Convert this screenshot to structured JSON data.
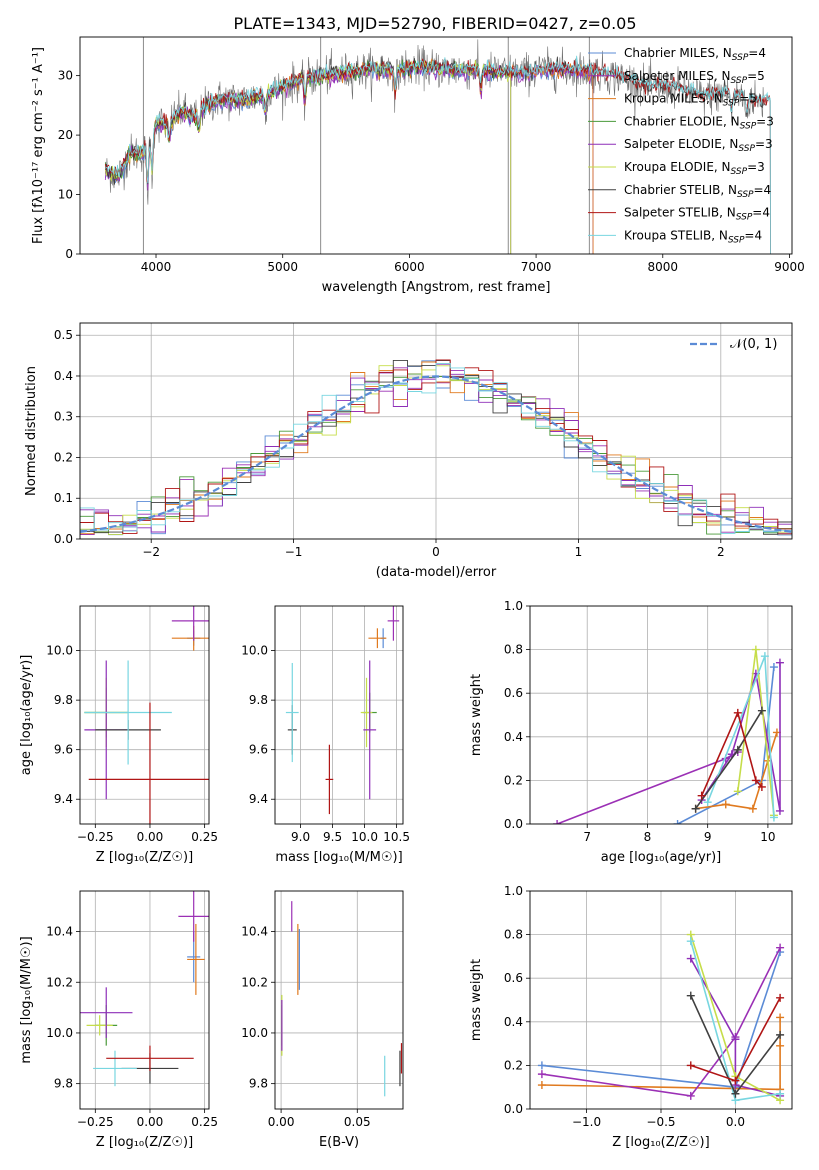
{
  "title": "PLATE=1343, MJD=52790, FIBERID=0427, z=0.05",
  "colors": {
    "chabrier_miles": "#5b8bd6",
    "salpeter_miles": "#9b30b5",
    "kroupa_miles": "#e07a1f",
    "chabrier_elodie": "#4a9a3a",
    "salpeter_elodie": "#8e2fb8",
    "kroupa_elodie": "#c6dd4a",
    "chabrier_stelib": "#404040",
    "salpeter_stelib": "#b01515",
    "kroupa_stelib": "#78d6e0",
    "gaussian": "#5b8bd6",
    "grid": "#b0b0b0"
  },
  "chart_data": [
    {
      "id": "spectrum",
      "type": "line",
      "xlabel": "wavelength [Angstrom, rest frame]",
      "ylabel": "Flux [fλ10⁻¹⁷ erg cm⁻² s⁻¹ A⁻¹]",
      "xlim": [
        3400,
        9020
      ],
      "ylim": [
        0,
        36.5
      ],
      "xticks": [
        "4000",
        "5000",
        "6000",
        "7000",
        "8000",
        "9000"
      ],
      "yticks": [
        "0",
        "10",
        "20",
        "30"
      ],
      "legend_position": "top-right",
      "legend": [
        {
          "key": "chabrier_miles",
          "label": "Chabrier MILES, N",
          "sub": "SSP",
          "tail": "=4"
        },
        {
          "key": "salpeter_miles",
          "label": "Salpeter MILES, N",
          "sub": "SSP",
          "tail": "=5"
        },
        {
          "key": "kroupa_miles",
          "label": "Kroupa MILES, N",
          "sub": "SSP",
          "tail": "=5"
        },
        {
          "key": "chabrier_elodie",
          "label": "Chabrier ELODIE, N",
          "sub": "SSP",
          "tail": "=3"
        },
        {
          "key": "salpeter_elodie",
          "label": "Salpeter ELODIE, N",
          "sub": "SSP",
          "tail": "=3"
        },
        {
          "key": "kroupa_elodie",
          "label": "Kroupa ELODIE, N",
          "sub": "SSP",
          "tail": "=3"
        },
        {
          "key": "chabrier_stelib",
          "label": "Chabrier STELIB, N",
          "sub": "SSP",
          "tail": "=4"
        },
        {
          "key": "salpeter_stelib",
          "label": "Salpeter STELIB, N",
          "sub": "SSP",
          "tail": "=4"
        },
        {
          "key": "kroupa_stelib",
          "label": "Kroupa STELIB, N",
          "sub": "SSP",
          "tail": "=4"
        }
      ],
      "continuum": {
        "x": [
          3600,
          3700,
          3800,
          3900,
          4000,
          4100,
          4200,
          4300,
          4400,
          4500,
          4700,
          4900,
          5100,
          5300,
          5500,
          5700,
          5900,
          6100,
          6300,
          6500,
          6700,
          6900,
          7100,
          7300,
          7500,
          7700,
          7900,
          8100,
          8300,
          8500,
          8700,
          8800
        ],
        "y": [
          14,
          13,
          17,
          17,
          22,
          22,
          24,
          23,
          25,
          26,
          26,
          27,
          29,
          30,
          30.5,
          31,
          31,
          31.5,
          31,
          31,
          30.5,
          30.5,
          31,
          31,
          30.5,
          29.5,
          28,
          28,
          26.5,
          27,
          26,
          25.5
        ]
      },
      "model_ends": {
        "miles": 7450,
        "elodie": 6800,
        "stelib": 8850
      },
      "cut_positions": [
        3900,
        5300,
        6780,
        7420
      ]
    },
    {
      "id": "residual_hist",
      "type": "line",
      "xlabel": "(data-model)/error",
      "ylabel": "Normed distribution",
      "xlim": [
        -2.5,
        2.5
      ],
      "ylim": [
        0,
        0.53
      ],
      "xticks": [
        "−2",
        "−1",
        "0",
        "1",
        "2"
      ],
      "yticks": [
        "0.0",
        "0.1",
        "0.2",
        "0.3",
        "0.4",
        "0.5"
      ],
      "legend_position": "top-right",
      "gaussian_label": "𝒩(0, 1)",
      "bin_width": 0.1
    },
    {
      "id": "age_vs_z",
      "type": "scatter",
      "xlabel": "Z [log₁₀(Z/Z☉)]",
      "ylabel": "age  [log₁₀(age/yr)]",
      "xlim": [
        -0.32,
        0.27
      ],
      "ylim": [
        9.3,
        10.18
      ],
      "xticks": [
        "−0.25",
        "0.00",
        "0.25"
      ],
      "yticks": [
        "9.4",
        "9.6",
        "9.8",
        "10.0"
      ],
      "points": [
        {
          "key": "chabrier_miles",
          "x": 0.2,
          "y": 10.05,
          "xerr": 0.03,
          "yerr": 0.03
        },
        {
          "key": "kroupa_miles",
          "x": 0.2,
          "y": 10.05,
          "xerr": 0.1,
          "yerr": 0.05
        },
        {
          "key": "salpeter_miles",
          "x": 0.2,
          "y": 10.12,
          "xerr": 0.1,
          "yerr": 0.08
        },
        {
          "key": "chabrier_elodie",
          "x": -0.2,
          "y": 9.75,
          "xerr": 0.1,
          "yerr": 0.1
        },
        {
          "key": "kroupa_elodie",
          "x": -0.2,
          "y": 9.75,
          "xerr": 0.1,
          "yerr": 0.14
        },
        {
          "key": "salpeter_elodie",
          "x": -0.2,
          "y": 9.68,
          "xerr": 0.1,
          "yerr": 0.28
        },
        {
          "key": "chabrier_stelib",
          "x": -0.1,
          "y": 9.68,
          "xerr": 0.15,
          "yerr": 0.04
        },
        {
          "key": "kroupa_stelib",
          "x": -0.1,
          "y": 9.75,
          "xerr": 0.2,
          "yerr": 0.21
        },
        {
          "key": "salpeter_stelib",
          "x": 0.0,
          "y": 9.48,
          "xerr": 0.28,
          "yerr": 0.31
        }
      ]
    },
    {
      "id": "age_vs_mass",
      "type": "scatter",
      "xlabel": "mass [log₁₀(M/M☉)]",
      "xlim": [
        8.6,
        10.6
      ],
      "ylim": [
        9.3,
        10.18
      ],
      "xticks": [
        "9.0",
        "9.5",
        "10.0",
        "10.5"
      ],
      "yticks": [
        "9.4",
        "9.6",
        "9.8",
        "10.0"
      ],
      "points": [
        {
          "key": "chabrier_miles",
          "x": 10.29,
          "y": 10.05,
          "xerr": 0.04,
          "yerr": 0.04
        },
        {
          "key": "kroupa_miles",
          "x": 10.2,
          "y": 10.05,
          "xerr": 0.14,
          "yerr": 0.04
        },
        {
          "key": "salpeter_miles",
          "x": 10.45,
          "y": 10.12,
          "xerr": 0.09,
          "yerr": 0.08
        },
        {
          "key": "chabrier_elodie",
          "x": 10.08,
          "y": 9.75,
          "xerr": 0.11,
          "yerr": 0.08
        },
        {
          "key": "kroupa_elodie",
          "x": 10.03,
          "y": 9.75,
          "xerr": 0.09,
          "yerr": 0.14
        },
        {
          "key": "salpeter_elodie",
          "x": 10.08,
          "y": 9.68,
          "xerr": 0.1,
          "yerr": 0.28
        },
        {
          "key": "chabrier_stelib",
          "x": 8.87,
          "y": 9.68,
          "xerr": 0.07,
          "yerr": 0.1
        },
        {
          "key": "kroupa_stelib",
          "x": 8.87,
          "y": 9.75,
          "xerr": 0.1,
          "yerr": 0.2
        },
        {
          "key": "salpeter_stelib",
          "x": 9.45,
          "y": 9.48,
          "xerr": 0.06,
          "yerr": 0.14
        }
      ]
    },
    {
      "id": "weight_vs_age",
      "type": "line",
      "xlabel": "age  [log₁₀(age/yr)]",
      "ylabel": "mass weight",
      "xlim": [
        6.05,
        10.4
      ],
      "ylim": [
        0,
        1
      ],
      "xticks": [
        "7",
        "8",
        "9",
        "10"
      ],
      "yticks": [
        "0.0",
        "0.2",
        "0.4",
        "0.6",
        "0.8",
        "1.0"
      ],
      "series": [
        {
          "key": "salpeter_miles",
          "x": [
            6.5,
            9.3,
            9.5
          ],
          "y": [
            0.0,
            0.3,
            0.33
          ]
        },
        {
          "key": "chabrier_miles",
          "x": [
            8.5,
            9.9,
            10.1
          ],
          "y": [
            0.0,
            0.2,
            0.72
          ]
        },
        {
          "key": "kroupa_miles",
          "x": [
            8.8,
            9.3,
            9.75,
            10.0,
            10.15
          ],
          "y": [
            0.07,
            0.09,
            0.07,
            0.29,
            0.42
          ]
        },
        {
          "key": "salpeter_elodie",
          "x": [
            8.9,
            9.4,
            9.8,
            10.2,
            10.2
          ],
          "y": [
            0.11,
            0.32,
            0.69,
            0.06,
            0.74
          ]
        },
        {
          "key": "kroupa_elodie",
          "x": [
            9.5,
            9.8,
            10.1
          ],
          "y": [
            0.15,
            0.8,
            0.04
          ]
        },
        {
          "key": "kroupa_stelib",
          "x": [
            9.0,
            9.95,
            10.1
          ],
          "y": [
            0.1,
            0.77,
            0.03
          ]
        },
        {
          "key": "chabrier_stelib",
          "x": [
            8.8,
            9.5,
            9.9
          ],
          "y": [
            0.07,
            0.34,
            0.52
          ]
        },
        {
          "key": "salpeter_stelib",
          "x": [
            8.9,
            9.5,
            9.8,
            9.9
          ],
          "y": [
            0.13,
            0.51,
            0.2,
            0.17
          ]
        }
      ]
    },
    {
      "id": "mass_vs_z",
      "type": "scatter",
      "xlabel": "Z [log₁₀(Z/Z☉)]",
      "ylabel": "mass [log₁₀(M/M☉)]",
      "xlim": [
        -0.32,
        0.27
      ],
      "ylim": [
        9.7,
        10.56
      ],
      "xticks": [
        "−0.25",
        "0.00",
        "0.25"
      ],
      "yticks": [
        "9.8",
        "10.0",
        "10.2",
        "10.4"
      ],
      "points": [
        {
          "key": "chabrier_miles",
          "x": 0.2,
          "y": 10.3,
          "xerr": 0.03,
          "yerr": 0.1
        },
        {
          "key": "kroupa_miles",
          "x": 0.21,
          "y": 10.29,
          "xerr": 0.04,
          "yerr": 0.14
        },
        {
          "key": "salpeter_miles",
          "x": 0.2,
          "y": 10.46,
          "xerr": 0.07,
          "yerr": 0.1
        },
        {
          "key": "chabrier_elodie",
          "x": -0.2,
          "y": 10.03,
          "xerr": 0.05,
          "yerr": 0.08
        },
        {
          "key": "kroupa_elodie",
          "x": -0.23,
          "y": 10.03,
          "xerr": 0.06,
          "yerr": 0.04
        },
        {
          "key": "salpeter_elodie",
          "x": -0.2,
          "y": 10.08,
          "xerr": 0.12,
          "yerr": 0.1
        },
        {
          "key": "chabrier_stelib",
          "x": 0.0,
          "y": 9.86,
          "xerr": 0.13,
          "yerr": 0.06
        },
        {
          "key": "kroupa_stelib",
          "x": -0.16,
          "y": 9.86,
          "xerr": 0.1,
          "yerr": 0.07
        },
        {
          "key": "salpeter_stelib",
          "x": 0.0,
          "y": 9.9,
          "xerr": 0.2,
          "yerr": 0.05
        }
      ]
    },
    {
      "id": "mass_vs_ebv",
      "type": "scatter",
      "xlabel": "E(B-V)",
      "xlim": [
        -0.004,
        0.08
      ],
      "ylim": [
        9.7,
        10.56
      ],
      "xticks": [
        "0.00",
        "0.05"
      ],
      "yticks": [
        "9.8",
        "10.0",
        "10.2",
        "10.4"
      ],
      "points": [
        {
          "key": "chabrier_miles",
          "x": 0.012,
          "y": 10.29,
          "xerr": 0.0,
          "yerr": 0.12
        },
        {
          "key": "kroupa_miles",
          "x": 0.011,
          "y": 10.29,
          "xerr": 0.0,
          "yerr": 0.14
        },
        {
          "key": "salpeter_miles",
          "x": 0.007,
          "y": 10.46,
          "xerr": 0.0,
          "yerr": 0.06
        },
        {
          "key": "chabrier_elodie",
          "x": 0.0005,
          "y": 10.03,
          "xerr": 0.0,
          "yerr": 0.08
        },
        {
          "key": "kroupa_elodie",
          "x": 0.0005,
          "y": 10.03,
          "xerr": 0.0,
          "yerr": 0.12
        },
        {
          "key": "salpeter_elodie",
          "x": 0.0005,
          "y": 10.03,
          "xerr": 0.0,
          "yerr": 0.1
        },
        {
          "key": "chabrier_stelib",
          "x": 0.078,
          "y": 9.86,
          "xerr": 0.0,
          "yerr": 0.07
        },
        {
          "key": "kroupa_stelib",
          "x": 0.068,
          "y": 9.83,
          "xerr": 0.0,
          "yerr": 0.08
        },
        {
          "key": "salpeter_stelib",
          "x": 0.079,
          "y": 9.9,
          "xerr": 0.0,
          "yerr": 0.06
        }
      ]
    },
    {
      "id": "weight_vs_z",
      "type": "line",
      "xlabel": "Z [log₁₀(Z/Z☉)]",
      "ylabel": "mass weight",
      "xlim": [
        -1.38,
        0.38
      ],
      "ylim": [
        0,
        1
      ],
      "xticks": [
        "−1.0",
        "−0.5",
        "0.0"
      ],
      "yticks": [
        "0.0",
        "0.2",
        "0.4",
        "0.6",
        "0.8",
        "1.0"
      ],
      "series": [
        {
          "key": "chabrier_miles",
          "x": [
            -1.3,
            0.0,
            0.3
          ],
          "y": [
            0.2,
            0.1,
            0.72
          ]
        },
        {
          "key": "kroupa_miles",
          "x": [
            -1.3,
            0.3,
            0.3,
            0.3
          ],
          "y": [
            0.11,
            0.09,
            0.42,
            0.29
          ]
        },
        {
          "key": "salpeter_miles",
          "x": [
            -1.3,
            -0.3,
            0.0,
            0.3
          ],
          "y": [
            0.16,
            0.06,
            0.33,
            0.74
          ]
        },
        {
          "key": "salpeter_elodie",
          "x": [
            -0.3,
            0.0,
            0.0,
            0.3
          ],
          "y": [
            0.69,
            0.32,
            0.11,
            0.06
          ]
        },
        {
          "key": "kroupa_elodie",
          "x": [
            -0.3,
            0.0,
            0.3
          ],
          "y": [
            0.8,
            0.15,
            0.04
          ]
        },
        {
          "key": "kroupa_stelib",
          "x": [
            -0.3,
            0.0,
            0.3
          ],
          "y": [
            0.77,
            0.04,
            0.07
          ]
        },
        {
          "key": "chabrier_stelib",
          "x": [
            -0.3,
            0.0,
            0.3
          ],
          "y": [
            0.52,
            0.07,
            0.34
          ]
        },
        {
          "key": "salpeter_stelib",
          "x": [
            -0.3,
            0.0,
            0.3
          ],
          "y": [
            0.2,
            0.13,
            0.51
          ]
        }
      ]
    }
  ]
}
